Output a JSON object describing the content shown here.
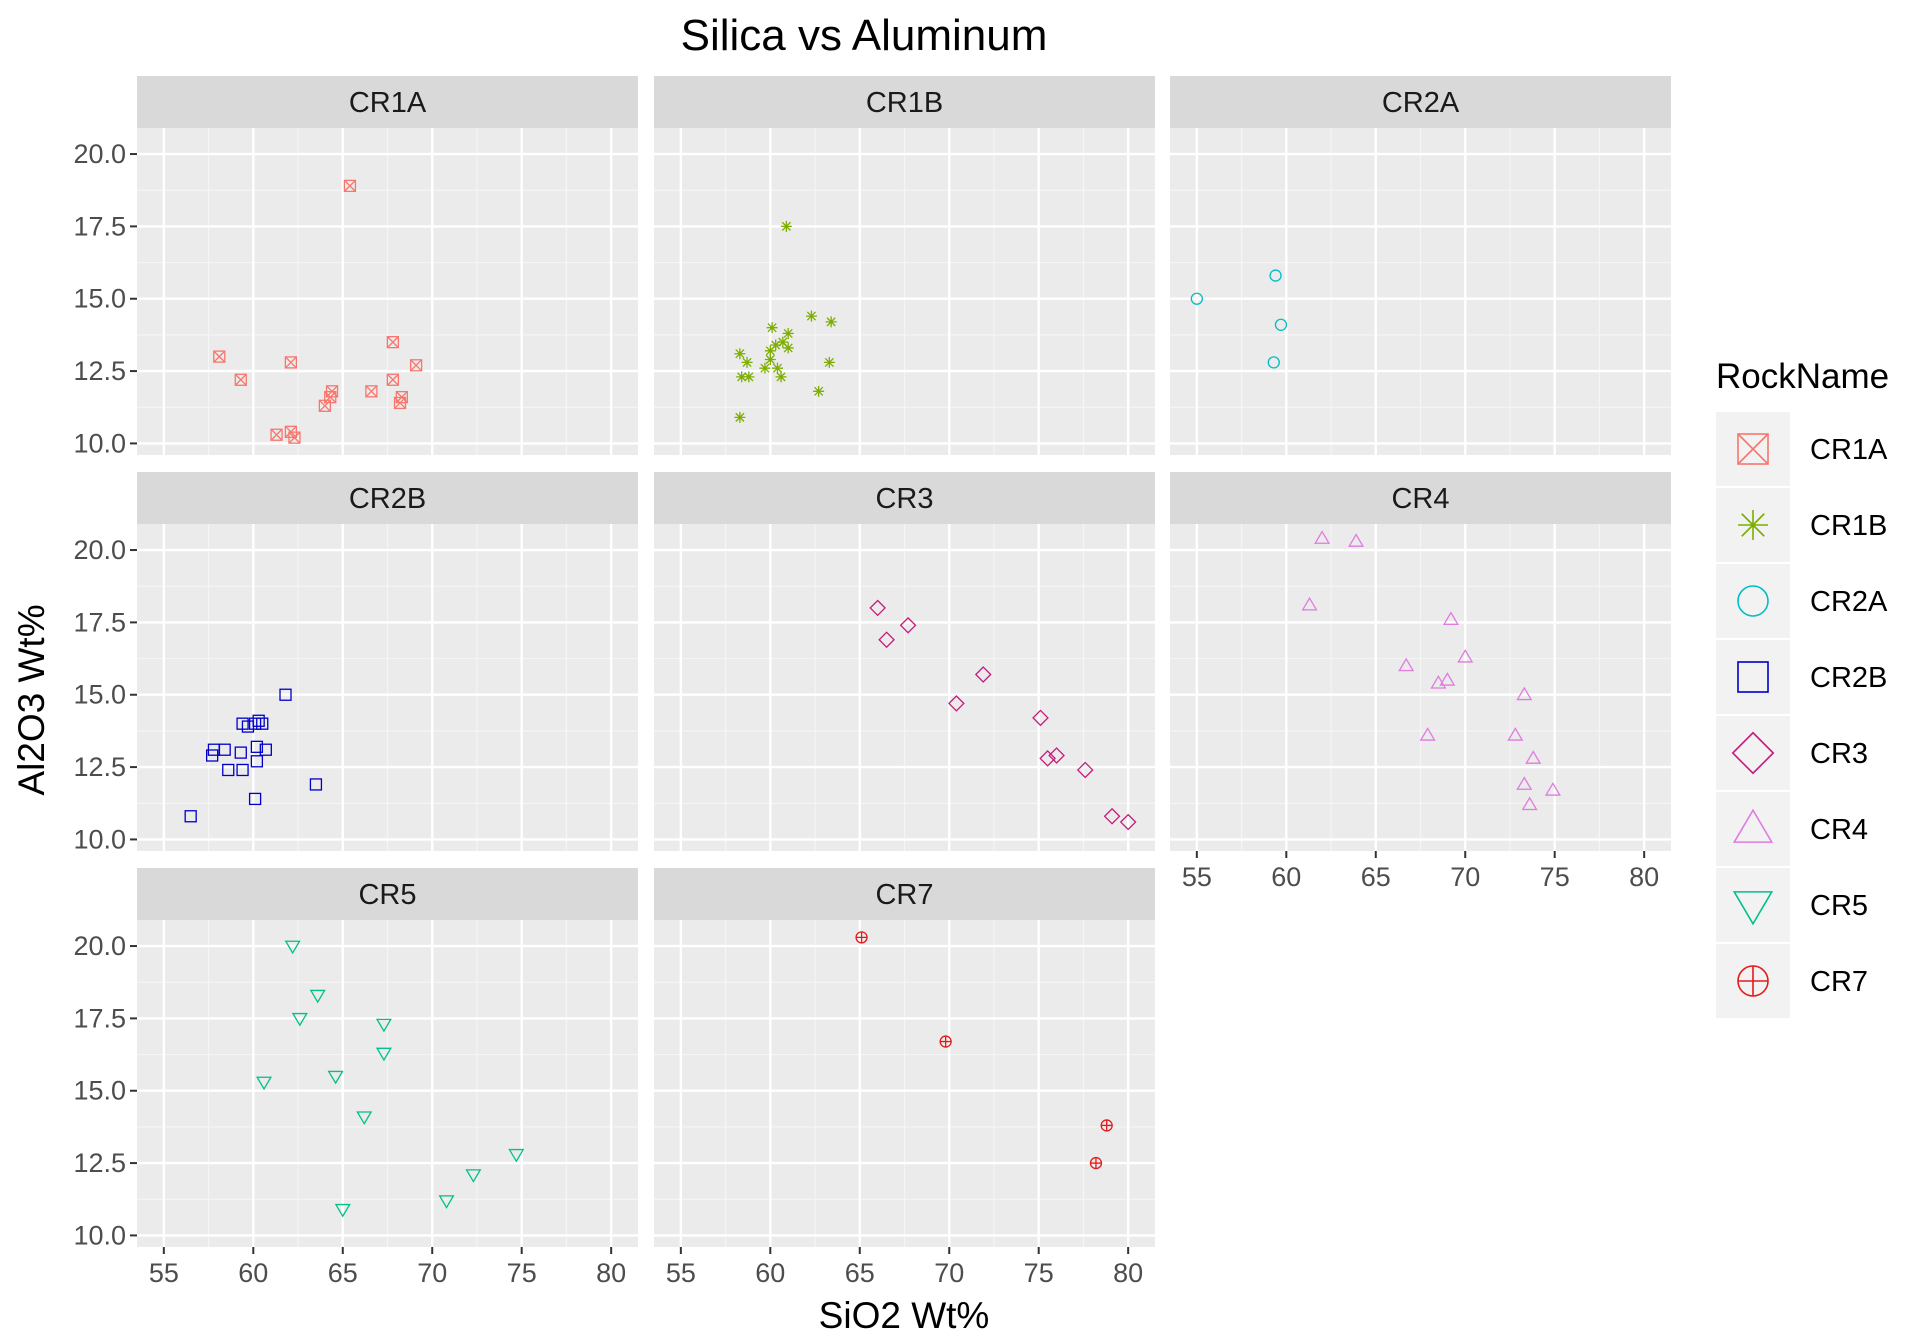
{
  "chart_data": {
    "type": "scatter",
    "title": "Silica vs Aluminum",
    "xlabel": "SiO2 Wt%",
    "ylabel": "Al2O3 Wt%",
    "xlim": [
      53.5,
      81.5
    ],
    "ylim": [
      9.6,
      20.9
    ],
    "x_ticks": [
      55,
      60,
      65,
      70,
      75,
      80
    ],
    "y_ticks": [
      10.0,
      12.5,
      15.0,
      17.5,
      20.0
    ],
    "x_tick_labels": [
      "55",
      "60",
      "65",
      "70",
      "75",
      "80"
    ],
    "y_tick_labels": [
      "10.0",
      "12.5",
      "15.0",
      "17.5",
      "20.0"
    ],
    "grid": true,
    "legend": {
      "title": "RockName",
      "position": "right"
    },
    "facets": [
      {
        "name": "CR1A",
        "shape": "square-cross",
        "color": "#F8766D",
        "points": [
          [
            65.4,
            18.9
          ],
          [
            58.1,
            13.0
          ],
          [
            62.1,
            12.8
          ],
          [
            67.8,
            13.5
          ],
          [
            69.1,
            12.7
          ],
          [
            59.3,
            12.2
          ],
          [
            67.8,
            12.2
          ],
          [
            66.6,
            11.8
          ],
          [
            64.4,
            11.8
          ],
          [
            64.3,
            11.6
          ],
          [
            64.0,
            11.3
          ],
          [
            68.3,
            11.6
          ],
          [
            68.2,
            11.4
          ],
          [
            62.1,
            10.4
          ],
          [
            61.3,
            10.3
          ],
          [
            62.3,
            10.2
          ]
        ]
      },
      {
        "name": "CR1B",
        "shape": "asterisk",
        "color": "#7CAE00",
        "points": [
          [
            60.9,
            17.5
          ],
          [
            62.3,
            14.4
          ],
          [
            63.4,
            14.2
          ],
          [
            60.1,
            14.0
          ],
          [
            61.0,
            13.8
          ],
          [
            60.3,
            13.4
          ],
          [
            60.7,
            13.5
          ],
          [
            61.0,
            13.3
          ],
          [
            58.3,
            13.1
          ],
          [
            60.0,
            13.2
          ],
          [
            58.7,
            12.8
          ],
          [
            63.3,
            12.8
          ],
          [
            59.7,
            12.6
          ],
          [
            60.4,
            12.6
          ],
          [
            60.0,
            12.9
          ],
          [
            58.4,
            12.3
          ],
          [
            58.8,
            12.3
          ],
          [
            60.6,
            12.3
          ],
          [
            62.7,
            11.8
          ],
          [
            58.3,
            10.9
          ]
        ]
      },
      {
        "name": "CR2A",
        "shape": "circle",
        "color": "#00BFC4",
        "points": [
          [
            55.0,
            15.0
          ],
          [
            59.4,
            15.8
          ],
          [
            59.7,
            14.1
          ],
          [
            59.3,
            12.8
          ]
        ]
      },
      {
        "name": "CR2B",
        "shape": "square",
        "color": "#0000C8",
        "points": [
          [
            61.8,
            15.0
          ],
          [
            60.3,
            14.1
          ],
          [
            59.4,
            14.0
          ],
          [
            60.1,
            14.0
          ],
          [
            60.5,
            14.0
          ],
          [
            59.7,
            13.9
          ],
          [
            60.2,
            13.2
          ],
          [
            60.7,
            13.1
          ],
          [
            57.8,
            13.1
          ],
          [
            58.4,
            13.1
          ],
          [
            57.7,
            12.9
          ],
          [
            59.3,
            13.0
          ],
          [
            60.2,
            12.7
          ],
          [
            58.6,
            12.4
          ],
          [
            59.4,
            12.4
          ],
          [
            63.5,
            11.9
          ],
          [
            60.1,
            11.4
          ],
          [
            56.5,
            10.8
          ]
        ]
      },
      {
        "name": "CR3",
        "shape": "diamond",
        "color": "#C51B7D",
        "points": [
          [
            66.0,
            18.0
          ],
          [
            67.7,
            17.4
          ],
          [
            66.5,
            16.9
          ],
          [
            71.9,
            15.7
          ],
          [
            70.4,
            14.7
          ],
          [
            75.1,
            14.2
          ],
          [
            75.5,
            12.8
          ],
          [
            76.0,
            12.9
          ],
          [
            77.6,
            12.4
          ],
          [
            79.1,
            10.8
          ],
          [
            80.0,
            10.6
          ]
        ]
      },
      {
        "name": "CR4",
        "shape": "triangle-up",
        "color": "#E07BE0",
        "points": [
          [
            62.0,
            20.4
          ],
          [
            63.9,
            20.3
          ],
          [
            61.3,
            18.1
          ],
          [
            69.2,
            17.6
          ],
          [
            70.0,
            16.3
          ],
          [
            66.7,
            16.0
          ],
          [
            69.0,
            15.5
          ],
          [
            68.5,
            15.4
          ],
          [
            73.3,
            15.0
          ],
          [
            67.9,
            13.6
          ],
          [
            72.8,
            13.6
          ],
          [
            73.8,
            12.8
          ],
          [
            73.3,
            11.9
          ],
          [
            74.9,
            11.7
          ],
          [
            73.6,
            11.2
          ]
        ]
      },
      {
        "name": "CR5",
        "shape": "triangle-down",
        "color": "#00C08B",
        "points": [
          [
            62.2,
            20.0
          ],
          [
            63.6,
            18.3
          ],
          [
            62.6,
            17.5
          ],
          [
            67.3,
            17.3
          ],
          [
            67.3,
            16.3
          ],
          [
            60.6,
            15.3
          ],
          [
            64.6,
            15.5
          ],
          [
            66.2,
            14.1
          ],
          [
            74.7,
            12.8
          ],
          [
            72.3,
            12.1
          ],
          [
            70.8,
            11.2
          ],
          [
            65.0,
            10.9
          ]
        ]
      },
      {
        "name": "CR7",
        "shape": "circle-plus",
        "color": "#E41A1C",
        "points": [
          [
            65.1,
            20.3
          ],
          [
            69.8,
            16.7
          ],
          [
            78.8,
            13.8
          ],
          [
            78.2,
            12.5
          ]
        ]
      }
    ]
  }
}
